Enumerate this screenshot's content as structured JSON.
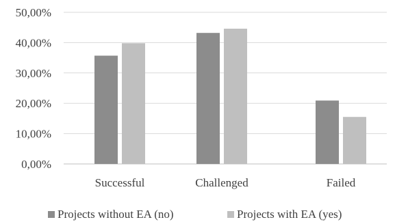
{
  "chart_data": {
    "type": "bar",
    "categories": [
      "Successful",
      "Challenged",
      "Failed"
    ],
    "series": [
      {
        "name": "Projects without EA (no)",
        "values": [
          35.7,
          43.2,
          20.9
        ],
        "color": "#8c8c8c"
      },
      {
        "name": "Projects with EA (yes)",
        "values": [
          39.8,
          44.6,
          15.5
        ],
        "color": "#bfbfbf"
      }
    ],
    "ylim": [
      0,
      50
    ],
    "yticks": [
      0,
      10,
      20,
      30,
      40,
      50
    ],
    "ytick_labels": [
      "0,00%",
      "10,00%",
      "20,00%",
      "30,00%",
      "40,00%",
      "50,00%"
    ],
    "grid": true,
    "legend_position": "bottom"
  }
}
